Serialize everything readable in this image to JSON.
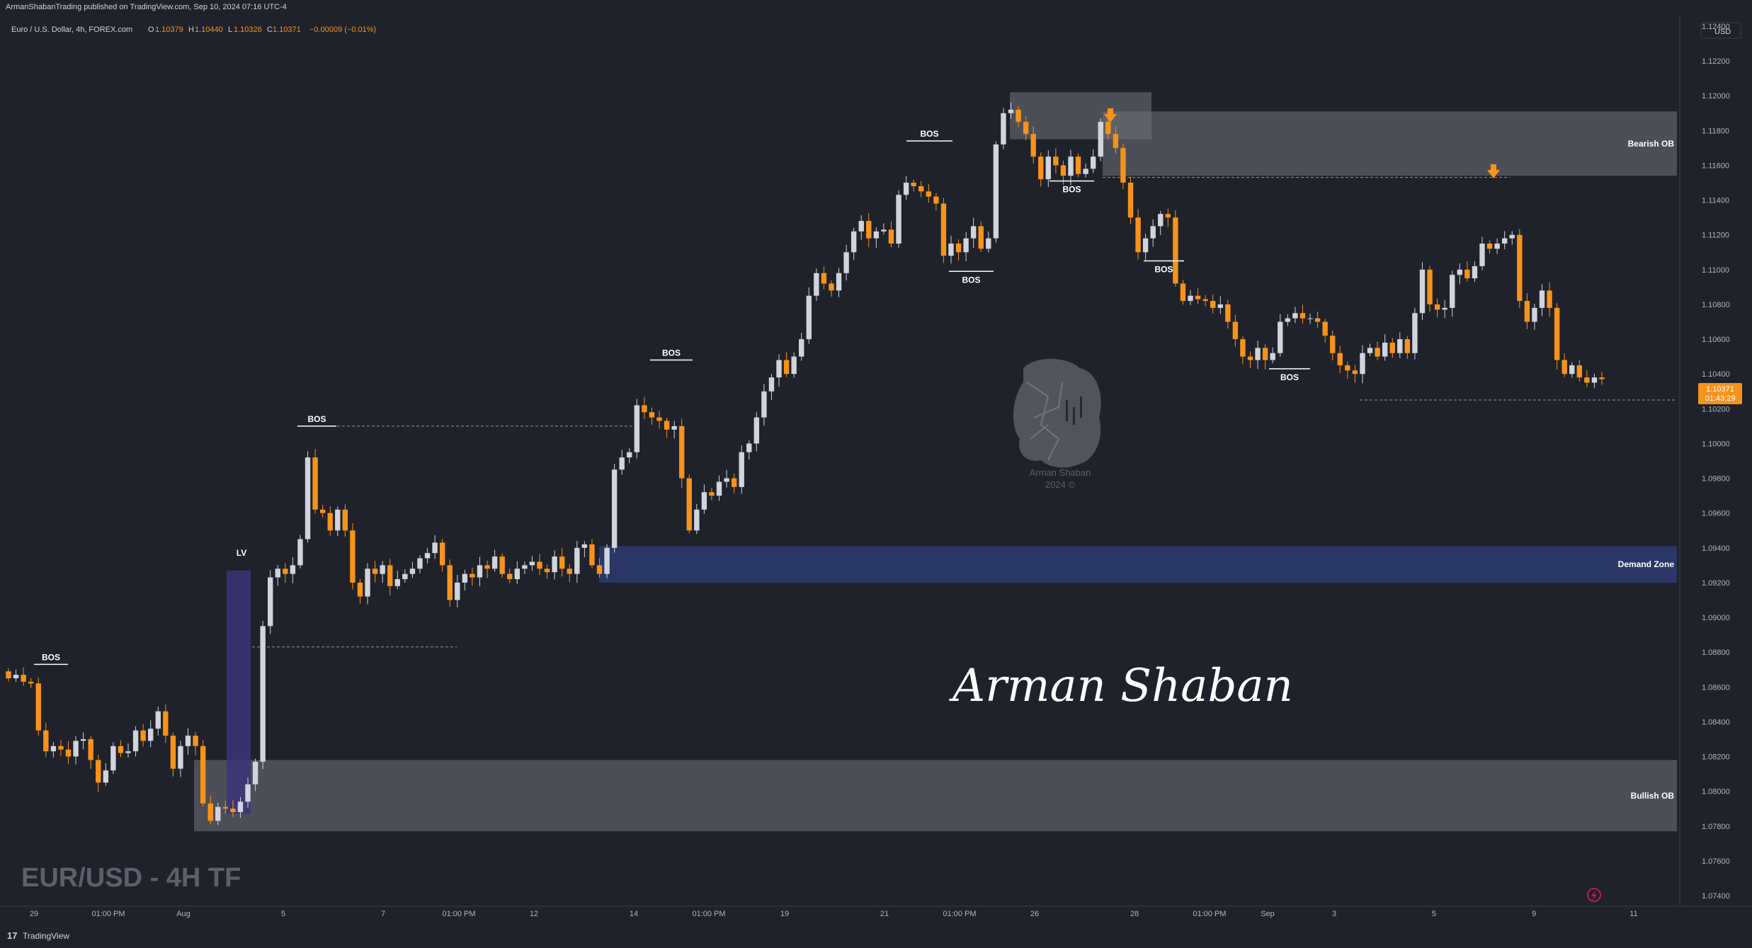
{
  "header": {
    "publisher_line": "ArmanShabanTrading published on TradingView.com, Sep 10, 2024 07:16 UTC-4"
  },
  "symbol_bar": {
    "symbol": "Euro / U.S. Dollar, 4h, FOREX.com",
    "o_label": "O",
    "o_value": "1.10379",
    "h_label": "H",
    "h_value": "1.10440",
    "l_label": "L",
    "l_value": "1.10326",
    "c_label": "C",
    "c_value": "1.10371",
    "change": "−0.00009 (−0.01%)"
  },
  "price_scale": {
    "currency": "USD",
    "last_price": "1.10371",
    "countdown": "01:43:29"
  },
  "watermark": {
    "logo_caption_name": "Arman Shaban",
    "logo_caption_year": "2024 ©",
    "signature": "Arman Shaban",
    "big_label": "EUR/USD - 4H TF"
  },
  "footer": {
    "brand": "TradingView"
  },
  "colors": {
    "background": "#1f222b",
    "bull_candle": "#d1d4dc",
    "bear_candle": "#f7931a",
    "demand_zone": "#2a3766",
    "ob_zone": "#6b6e75",
    "lv_zone": "#3a3577",
    "arrow": "#f7931a"
  },
  "chart_data": {
    "type": "candlestick",
    "timeframe": "4h",
    "ylim": [
      1.0735,
      1.1245
    ],
    "y_ticks": [
      "1.12400",
      "1.12200",
      "1.12000",
      "1.11800",
      "1.11600",
      "1.11400",
      "1.11200",
      "1.11000",
      "1.10800",
      "1.10600",
      "1.10400",
      "1.10200",
      "1.10000",
      "1.09800",
      "1.09600",
      "1.09400",
      "1.09200",
      "1.09000",
      "1.08800",
      "1.08600",
      "1.08400",
      "1.08200",
      "1.08000",
      "1.07800",
      "1.07600",
      "1.07400"
    ],
    "x_ticks": [
      "29",
      "01:00 PM",
      "Aug",
      "5",
      "7",
      "01:00 PM",
      "12",
      "14",
      "01:00 PM",
      "19",
      "21",
      "01:00 PM",
      "26",
      "28",
      "01:00 PM",
      "Sep",
      "3",
      "5",
      "9",
      "11"
    ],
    "zones": [
      {
        "label": "Bearish OB",
        "top": 1.1191,
        "bottom": 1.1154
      },
      {
        "label": "Demand Zone",
        "top": 1.0941,
        "bottom": 1.092
      },
      {
        "label": "Bullish OB",
        "top": 1.0818,
        "bottom": 1.0777
      }
    ],
    "annotations": [
      {
        "label": "BOS",
        "price": 1.0873
      },
      {
        "label": "LV",
        "price": 1.0933
      },
      {
        "label": "BOS",
        "price": 1.101
      },
      {
        "label": "BOS",
        "price": 1.1048
      },
      {
        "label": "BOS",
        "price": 1.1174
      },
      {
        "label": "BOS",
        "price": 1.1099
      },
      {
        "label": "BOS",
        "price": 1.1151
      },
      {
        "label": "BOS",
        "price": 1.1105
      },
      {
        "label": "BOS",
        "price": 1.1043
      }
    ],
    "closes": [
      1.0865,
      1.0867,
      1.0863,
      1.0862,
      1.0835,
      1.0823,
      1.0826,
      1.0824,
      1.082,
      1.0829,
      1.083,
      1.0818,
      1.0805,
      1.0812,
      1.0826,
      1.0822,
      1.0823,
      1.0835,
      1.0829,
      1.0836,
      1.0846,
      1.0832,
      1.0813,
      1.0826,
      1.0832,
      1.0826,
      1.0793,
      1.0783,
      1.0791,
      1.079,
      1.0788,
      1.0794,
      1.0804,
      1.0817,
      1.0895,
      1.0923,
      1.0928,
      1.0925,
      1.093,
      1.0945,
      1.0992,
      1.0962,
      1.096,
      1.095,
      1.0962,
      1.095,
      1.092,
      1.0912,
      1.0928,
      1.0925,
      1.093,
      1.0918,
      1.0922,
      1.0925,
      1.0928,
      1.0934,
      1.0937,
      1.0943,
      1.093,
      1.091,
      1.092,
      1.0925,
      1.0923,
      1.093,
      1.0928,
      1.0935,
      1.0925,
      1.0922,
      1.0928,
      1.093,
      1.0932,
      1.0928,
      1.0926,
      1.0935,
      1.0928,
      1.0925,
      1.094,
      1.0942,
      1.093,
      1.0925,
      1.094,
      1.0985,
      1.0992,
      1.0995,
      1.1022,
      1.1018,
      1.1015,
      1.1013,
      1.1008,
      1.101,
      1.098,
      1.095,
      1.0962,
      1.0972,
      1.097,
      1.0978,
      1.098,
      1.0975,
      1.0995,
      1.1,
      1.1015,
      1.103,
      1.1038,
      1.1048,
      1.104,
      1.105,
      1.106,
      1.1085,
      1.1098,
      1.1092,
      1.1088,
      1.1098,
      1.111,
      1.1122,
      1.1128,
      1.1118,
      1.1122,
      1.1123,
      1.1115,
      1.1143,
      1.115,
      1.1148,
      1.1145,
      1.1142,
      1.1138,
      1.1108,
      1.1115,
      1.111,
      1.1118,
      1.1125,
      1.1112,
      1.1118,
      1.1172,
      1.119,
      1.1192,
      1.1185,
      1.1178,
      1.1165,
      1.1152,
      1.1165,
      1.116,
      1.1154,
      1.1165,
      1.1155,
      1.1158,
      1.1165,
      1.1185,
      1.1178,
      1.117,
      1.115,
      1.113,
      1.111,
      1.1118,
      1.1125,
      1.1132,
      1.113,
      1.1092,
      1.1082,
      1.1085,
      1.1083,
      1.1082,
      1.1078,
      1.108,
      1.107,
      1.106,
      1.105,
      1.1048,
      1.1055,
      1.1048,
      1.1052,
      1.107,
      1.1072,
      1.1075,
      1.1072,
      1.1072,
      1.107,
      1.1062,
      1.1052,
      1.1045,
      1.1042,
      1.104,
      1.1052,
      1.1055,
      1.105,
      1.1058,
      1.1052,
      1.106,
      1.1052,
      1.1075,
      1.11,
      1.108,
      1.1077,
      1.1078,
      1.1097,
      1.11,
      1.1095,
      1.1102,
      1.1115,
      1.1112,
      1.1115,
      1.1118,
      1.112,
      1.1082,
      1.107,
      1.1078,
      1.1088,
      1.1078,
      1.1048,
      1.104,
      1.1045,
      1.1038,
      1.1035,
      1.1038,
      1.1037
    ]
  }
}
